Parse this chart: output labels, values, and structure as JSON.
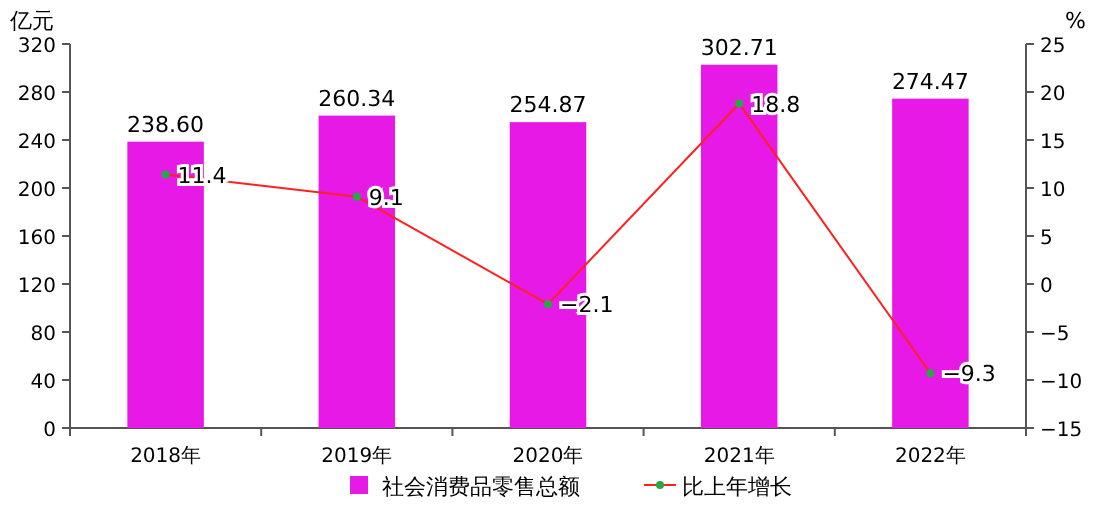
{
  "chart_data": {
    "type": "bar",
    "categories": [
      "2018年",
      "2019年",
      "2020年",
      "2021年",
      "2022年"
    ],
    "series": [
      {
        "name": "社会消费品零售总额",
        "color": "#e619e6",
        "values": [
          238.6,
          260.34,
          254.87,
          302.71,
          274.47
        ],
        "value_labels": [
          "238.60",
          "260.34",
          "254.87",
          "302.71",
          "274.47"
        ]
      },
      {
        "name": "比上年增长",
        "type": "line",
        "axis": "y2",
        "color": "#ff2020",
        "marker": "circle",
        "values": [
          11.4,
          9.1,
          -2.1,
          18.8,
          -9.3
        ],
        "value_labels": [
          "11.4",
          "9.1",
          "−2.1",
          "18.8",
          "−9.3"
        ]
      }
    ],
    "ylabel": "亿元",
    "y2label": "%",
    "ylim": [
      0,
      320
    ],
    "yticks": [
      0,
      40,
      80,
      120,
      160,
      200,
      240,
      280,
      320
    ],
    "y2lim": [
      -15,
      25
    ],
    "y2ticks": [
      -15,
      -10,
      -5,
      0,
      5,
      10,
      15,
      20,
      25
    ],
    "legend": "bottom"
  }
}
